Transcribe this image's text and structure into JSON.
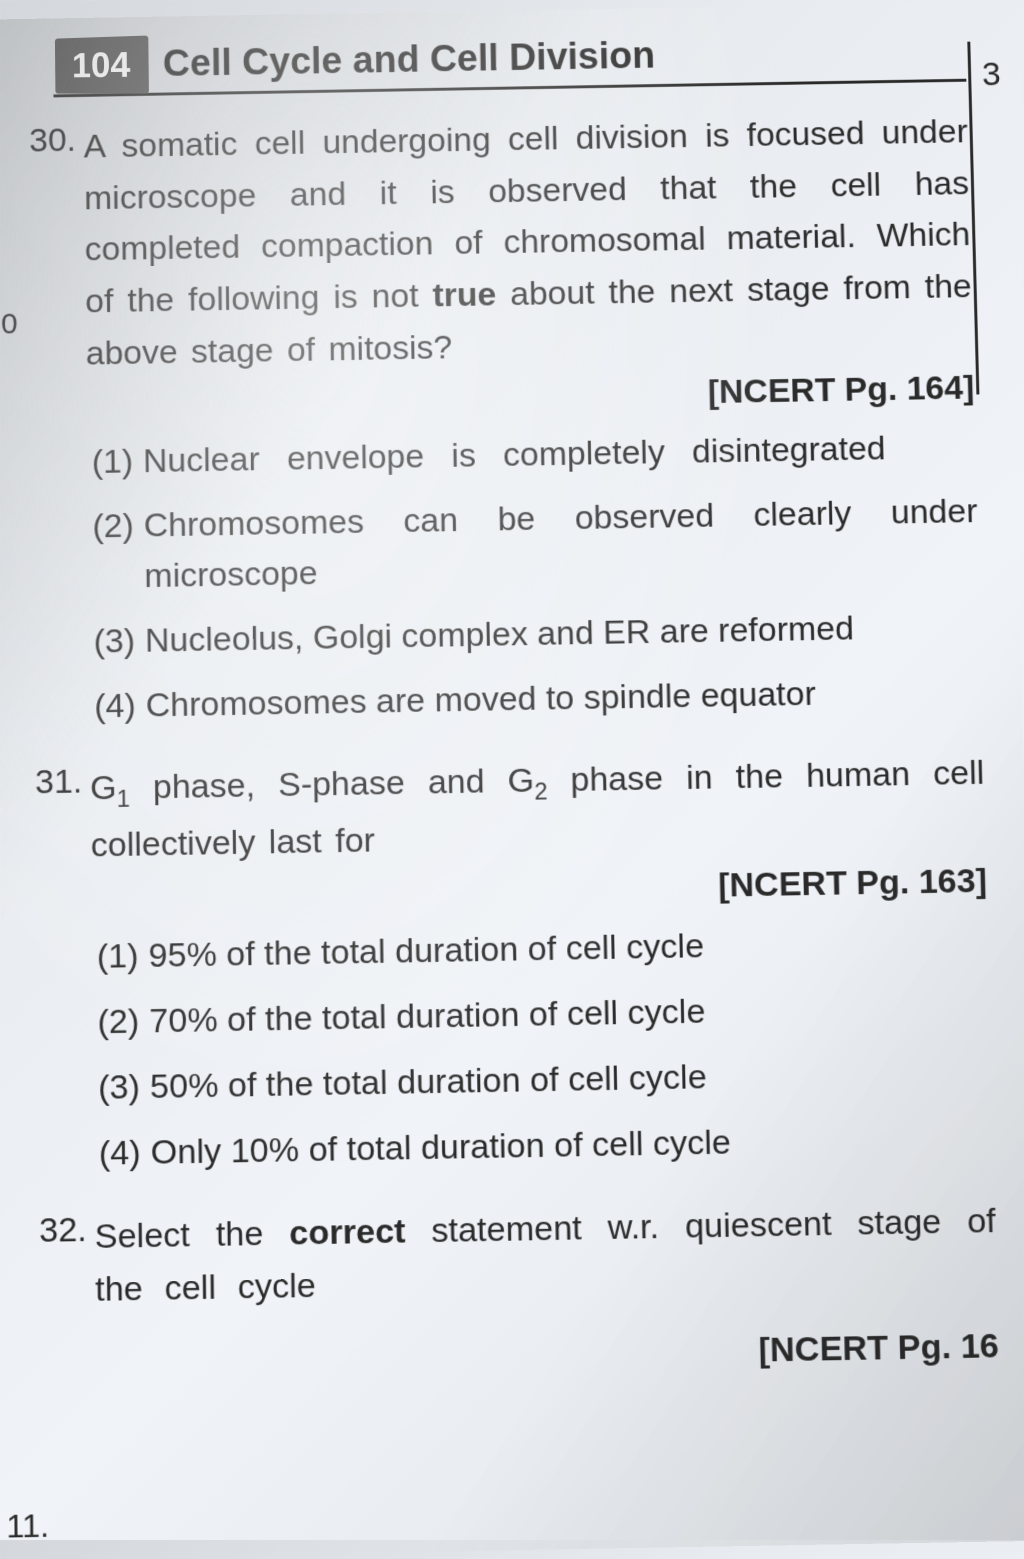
{
  "page": {
    "number": "104",
    "chapter_title": "Cell Cycle and Cell Division",
    "side_mark_left_1": "0",
    "side_mark_left_2": "11.",
    "side_mark_right": "3"
  },
  "questions": [
    {
      "number": "30.",
      "text_parts": {
        "pre": "A somatic cell undergoing cell division is focused under microscope and it is observed that the cell has completed compaction of chromosomal material. Which of the following is not ",
        "bold": "true",
        "post": " about the next stage from the above stage of mitosis?"
      },
      "reference": "[NCERT Pg. 164]",
      "options": [
        {
          "num": "(1)",
          "text": "Nuclear envelope is completely disintegrated"
        },
        {
          "num": "(2)",
          "text": "Chromosomes can be observed clearly under microscope"
        },
        {
          "num": "(3)",
          "text": "Nucleolus, Golgi complex and ER are reformed"
        },
        {
          "num": "(4)",
          "text": "Chromosomes are moved to spindle equator"
        }
      ]
    },
    {
      "number": "31.",
      "text_html": "G<span class='sub'>1</span> phase, S-phase and G<span class='sub'>2</span> phase in the human cell collectively last for",
      "reference": "[NCERT Pg. 163]",
      "options": [
        {
          "num": "(1)",
          "text": "95% of the total duration of cell cycle"
        },
        {
          "num": "(2)",
          "text": "70% of the total duration of cell cycle"
        },
        {
          "num": "(3)",
          "text": "50% of the total duration of cell cycle"
        },
        {
          "num": "(4)",
          "text": "Only 10% of total duration of cell cycle"
        }
      ]
    },
    {
      "number": "32.",
      "text_parts": {
        "pre": "Select the ",
        "bold": "correct",
        "post": " statement w.r. quiescent stage of the cell cycle"
      },
      "reference": "[NCERT Pg. 16",
      "options": []
    }
  ],
  "styling": {
    "background_gradient": [
      "#d4d8dc",
      "#e8ecf0",
      "#f0f4f8",
      "#e0e4e8"
    ],
    "text_color": "#2a2a2a",
    "page_number_bg": "#5a5a5a",
    "page_number_fg": "#ffffff",
    "font_size_body": 34,
    "font_size_header": 38
  }
}
